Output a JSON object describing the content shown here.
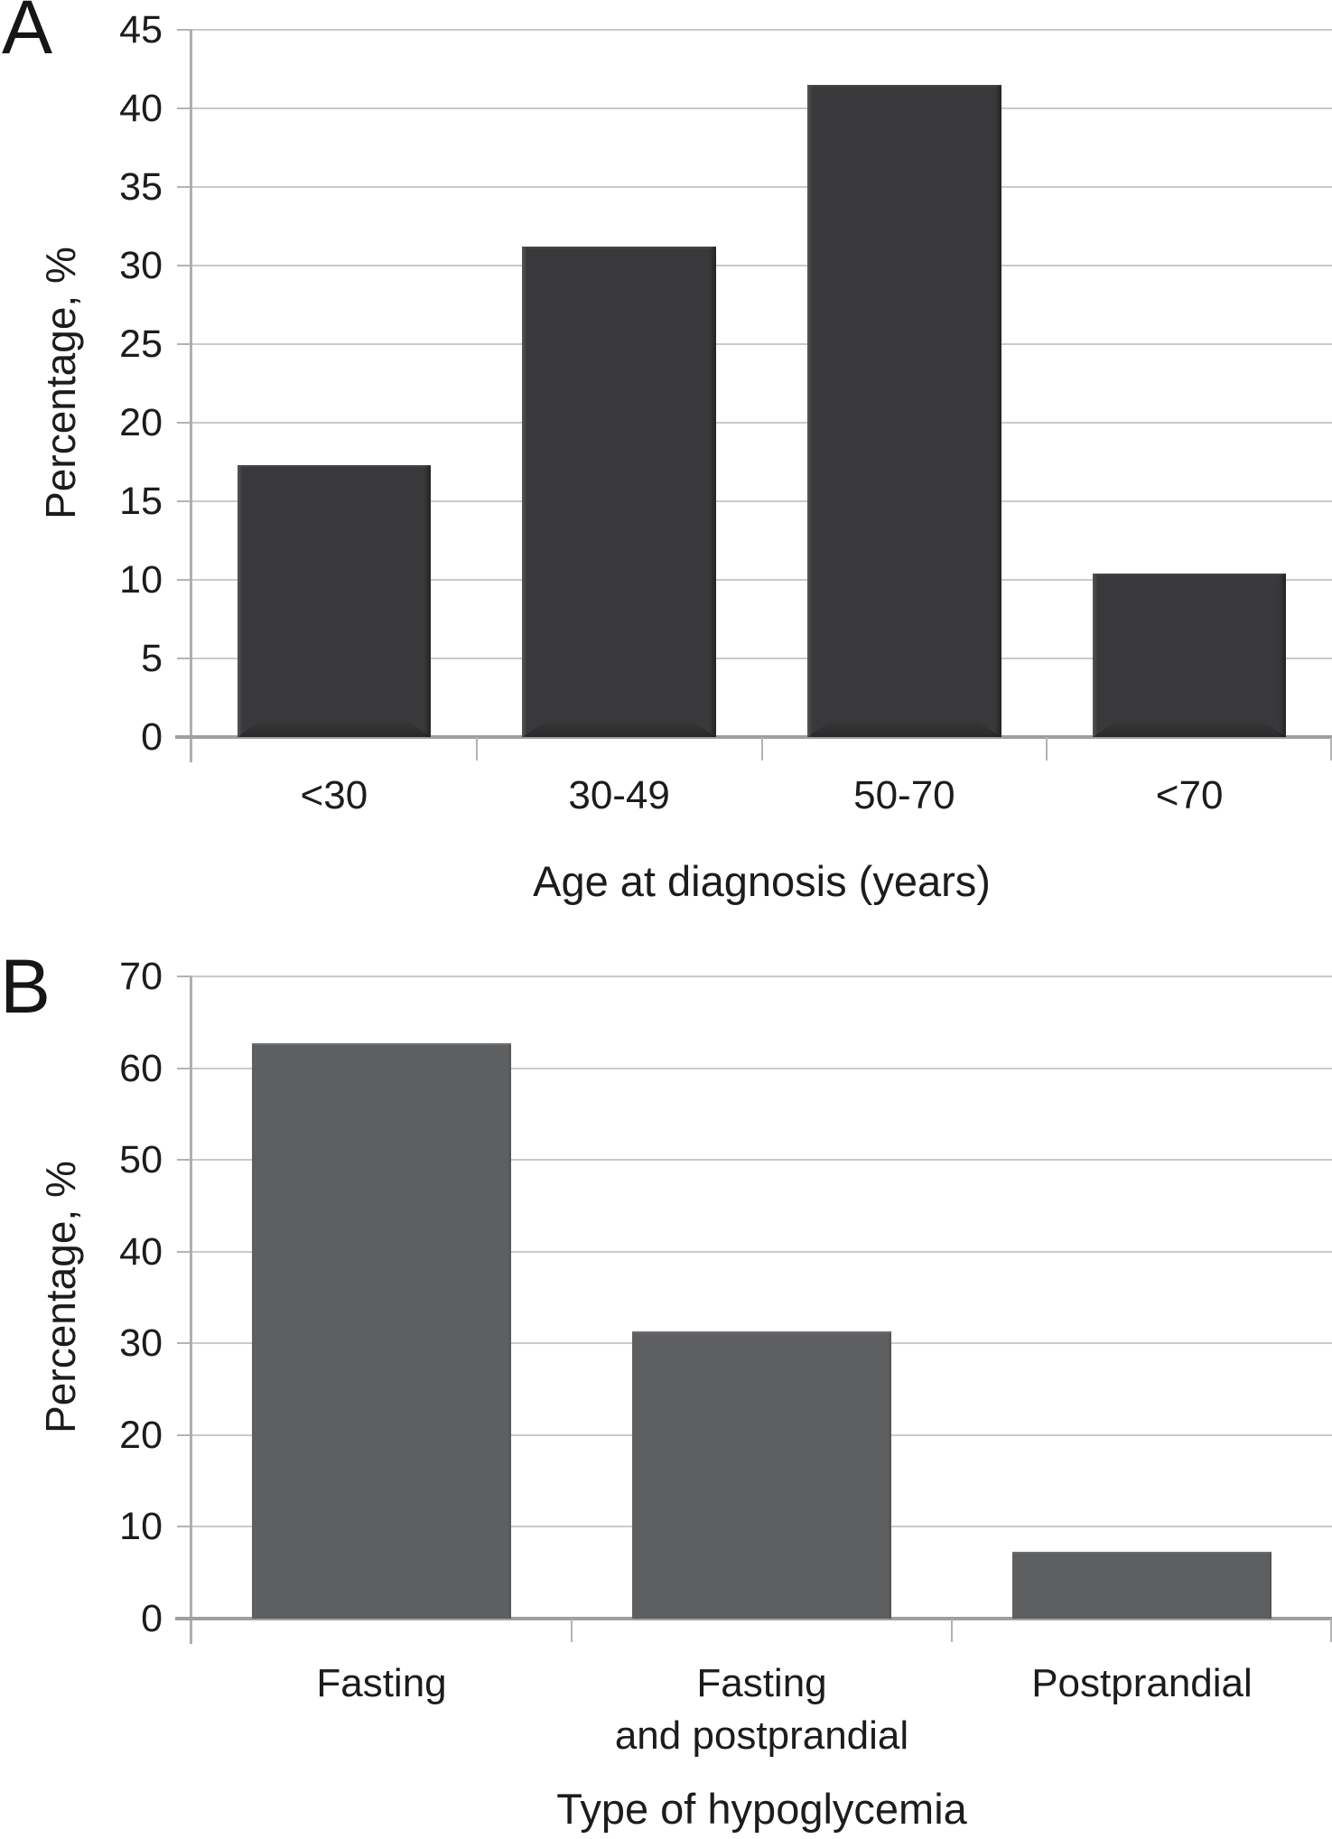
{
  "colors": {
    "background": "#ffffff",
    "gridline": "#cacaca",
    "y_axis_line": "#aeaeae",
    "x_axis_line": "#9f9f9f",
    "text": "#1c1c1e",
    "panel_a_bar": "#39393b",
    "panel_b_bar": "#5e5f61"
  },
  "chart_data": [
    {
      "type": "bar",
      "panel_label": "A",
      "title": "",
      "categories": [
        "<30",
        "30-49",
        "50-70",
        "<70"
      ],
      "values": [
        17.3,
        31.2,
        41.5,
        10.4
      ],
      "xlabel": "Age at diagnosis (years)",
      "ylabel": "Percentage, %",
      "ylim": [
        0,
        45
      ],
      "yticks": [
        45,
        40,
        35,
        30,
        25,
        20,
        15,
        10,
        5,
        0
      ],
      "grid": "horizontal",
      "legend": null,
      "bar_color": "#39393b"
    },
    {
      "type": "bar",
      "panel_label": "B",
      "title": "",
      "categories": [
        "Fasting",
        "Fasting\nand postprandial",
        "Postprandial"
      ],
      "values": [
        62.7,
        31.3,
        7.3
      ],
      "xlabel": "Type of hypoglycemia",
      "ylabel": "Percentage, %",
      "ylim": [
        0,
        70
      ],
      "yticks": [
        70,
        60,
        50,
        40,
        30,
        20,
        10,
        0
      ],
      "grid": "horizontal",
      "legend": null,
      "bar_color": "#5e5f61"
    }
  ]
}
